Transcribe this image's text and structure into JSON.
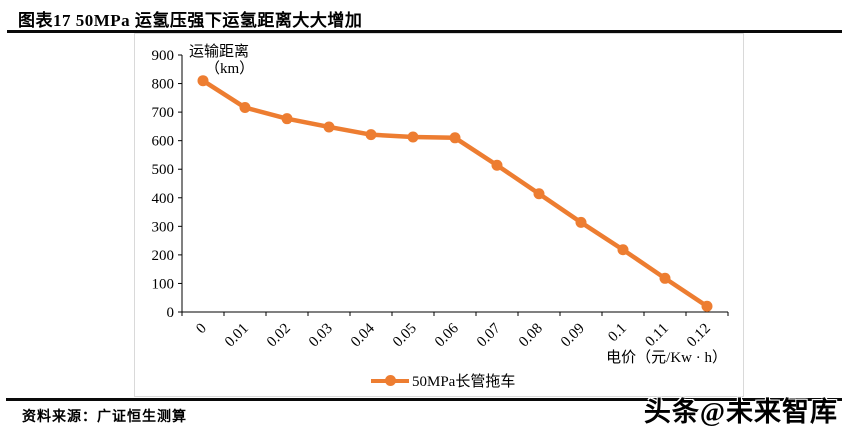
{
  "header": {
    "title": "图表17 50MPa 运氢压强下运氢距离大大增加"
  },
  "chart_data": {
    "type": "line",
    "categories": [
      "0",
      "0.01",
      "0.02",
      "0.03",
      "0.04",
      "0.05",
      "0.06",
      "0.07",
      "0.08",
      "0.09",
      "0.1",
      "0.11",
      "0.12"
    ],
    "series": [
      {
        "name": "50MPa长管拖车",
        "values": [
          810,
          716,
          677,
          648,
          621,
          613,
          610,
          514,
          414,
          314,
          218,
          118,
          20
        ]
      }
    ],
    "xlabel": "电价（元/Kw · h）",
    "ylabel_line1": "运输距离",
    "ylabel_line2": "（km）",
    "ylim": [
      0,
      900
    ],
    "ytick_step": 100,
    "grid": false,
    "legend_position": "bottom",
    "series_color": "#ED7D31",
    "axis_color": "#000000"
  },
  "footer": {
    "source": "资料来源：广证恒生测算"
  },
  "watermark": {
    "text": "头条@未来智库"
  }
}
